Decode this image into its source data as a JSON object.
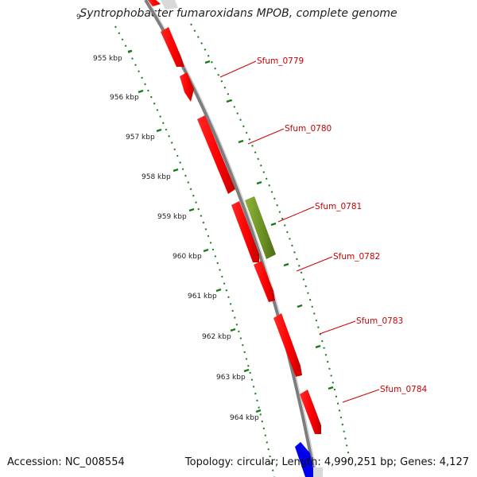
{
  "header": {
    "title": "Syntrophobacter fumaroxidans MPOB, complete genome"
  },
  "footer": {
    "accession": "Accession: NC_008554",
    "stats": "Topology: circular; Length: 4,990,251 bp; Genes: 4,127"
  },
  "ticks": [
    {
      "label": "955 kbp"
    },
    {
      "label": "956 kbp"
    },
    {
      "label": "957 kbp"
    },
    {
      "label": "958 kbp"
    },
    {
      "label": "959 kbp"
    },
    {
      "label": "960 kbp"
    },
    {
      "label": "961 kbp"
    },
    {
      "label": "962 kbp"
    },
    {
      "label": "963 kbp"
    },
    {
      "label": "964 kbp"
    }
  ],
  "genes": [
    {
      "label": "Sfum_0779"
    },
    {
      "label": "Sfum_0780"
    },
    {
      "label": "Sfum_0781"
    },
    {
      "label": "Sfum_0782"
    },
    {
      "label": "Sfum_0783"
    },
    {
      "label": "Sfum_0784"
    }
  ],
  "colors": {
    "forward_gene": "#ff0000",
    "highlight_gene": "#6b8e23",
    "reverse_gene": "#0000ee",
    "backbone": "#808080",
    "tick": "#1a7a1a",
    "label": "#cc0000"
  }
}
